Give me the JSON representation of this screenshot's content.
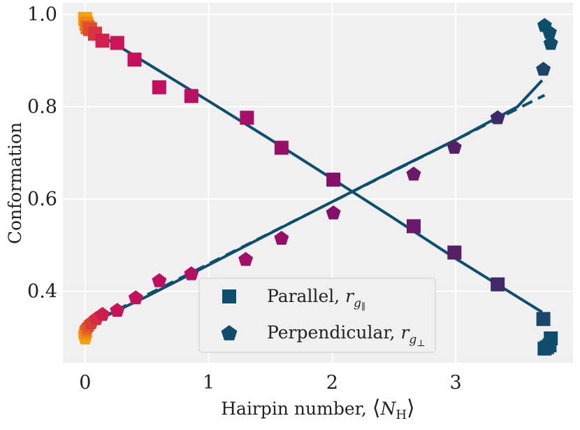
{
  "chart_data": {
    "type": "scatter",
    "title": "",
    "xlabel": "Hairpin number, ⟨Nʜ⟩",
    "xlabel_text": "Hairpin number, ",
    "xlabel_symbol": "N",
    "xlabel_subscript": "H",
    "ylabel": "Conformation",
    "xlim": [
      -0.18,
      3.95
    ],
    "ylim": [
      0.245,
      1.025
    ],
    "x_ticks": [
      0,
      1,
      2,
      3
    ],
    "x_tick_labels": [
      "0",
      "1",
      "2",
      "3"
    ],
    "y_ticks": [
      0.4,
      0.6,
      0.8,
      1.0
    ],
    "y_tick_labels": [
      "0.4",
      "0.6",
      "0.8",
      "1.0"
    ],
    "grid": true,
    "legend": {
      "position": "bottom-center",
      "entries": [
        {
          "marker": "square",
          "label": "Parallel, ",
          "symbol": "r",
          "subscript": "g",
          "subsub": "∥"
        },
        {
          "marker": "pentagon",
          "label": "Perpendicular, ",
          "symbol": "r",
          "subscript": "g",
          "subsub": "⊥"
        }
      ]
    },
    "fit_color": "#0d4f6e",
    "series": [
      {
        "name": "Parallel",
        "marker": "square",
        "points": [
          {
            "x": 0.0,
            "y": 0.99,
            "color": "#f5a30a"
          },
          {
            "x": 0.01,
            "y": 0.98,
            "color": "#ef8a14"
          },
          {
            "x": 0.02,
            "y": 0.972,
            "color": "#e86c1e"
          },
          {
            "x": 0.04,
            "y": 0.968,
            "color": "#e04d2c"
          },
          {
            "x": 0.08,
            "y": 0.958,
            "color": "#d93540"
          },
          {
            "x": 0.14,
            "y": 0.943,
            "color": "#d21f4c"
          },
          {
            "x": 0.26,
            "y": 0.938,
            "color": "#cc1458"
          },
          {
            "x": 0.4,
            "y": 0.902,
            "color": "#c6105c"
          },
          {
            "x": 0.6,
            "y": 0.842,
            "color": "#c20f5e"
          },
          {
            "x": 0.86,
            "y": 0.823,
            "color": "#b80f62"
          },
          {
            "x": 1.31,
            "y": 0.776,
            "color": "#a50f66"
          },
          {
            "x": 1.59,
            "y": 0.711,
            "color": "#980f68"
          },
          {
            "x": 2.01,
            "y": 0.642,
            "color": "#860f6a"
          },
          {
            "x": 2.66,
            "y": 0.541,
            "color": "#6a1a6a"
          },
          {
            "x": 2.99,
            "y": 0.484,
            "color": "#552066"
          },
          {
            "x": 3.34,
            "y": 0.415,
            "color": "#3e2a68"
          },
          {
            "x": 3.71,
            "y": 0.34,
            "color": "#1d4469"
          },
          {
            "x": 3.72,
            "y": 0.276,
            "color": "#0f4d6d"
          },
          {
            "x": 3.77,
            "y": 0.298,
            "color": "#0f4d6d"
          },
          {
            "x": 3.76,
            "y": 0.283,
            "color": "#0f4d6d"
          },
          {
            "x": 3.74,
            "y": 0.279,
            "color": "#0f4d6d"
          }
        ]
      },
      {
        "name": "Perpendicular",
        "marker": "pentagon",
        "points": [
          {
            "x": 0.0,
            "y": 0.3,
            "color": "#f5a30a"
          },
          {
            "x": 0.0,
            "y": 0.308,
            "color": "#f29512"
          },
          {
            "x": 0.005,
            "y": 0.313,
            "color": "#ee8418"
          },
          {
            "x": 0.01,
            "y": 0.318,
            "color": "#ea721e"
          },
          {
            "x": 0.015,
            "y": 0.322,
            "color": "#e66224"
          },
          {
            "x": 0.03,
            "y": 0.327,
            "color": "#e0502c"
          },
          {
            "x": 0.05,
            "y": 0.333,
            "color": "#da3d36"
          },
          {
            "x": 0.09,
            "y": 0.342,
            "color": "#d42c42"
          },
          {
            "x": 0.14,
            "y": 0.351,
            "color": "#ce1c4e"
          },
          {
            "x": 0.26,
            "y": 0.36,
            "color": "#c81456"
          },
          {
            "x": 0.41,
            "y": 0.387,
            "color": "#c3105c"
          },
          {
            "x": 0.6,
            "y": 0.424,
            "color": "#bd0f60"
          },
          {
            "x": 0.86,
            "y": 0.439,
            "color": "#b40f63"
          },
          {
            "x": 1.3,
            "y": 0.47,
            "color": "#a20f66"
          },
          {
            "x": 1.59,
            "y": 0.516,
            "color": "#950f68"
          },
          {
            "x": 2.01,
            "y": 0.571,
            "color": "#830f6a"
          },
          {
            "x": 2.66,
            "y": 0.655,
            "color": "#6c196a"
          },
          {
            "x": 2.99,
            "y": 0.713,
            "color": "#562066"
          },
          {
            "x": 3.34,
            "y": 0.777,
            "color": "#3e2a68"
          },
          {
            "x": 3.71,
            "y": 0.882,
            "color": "#1d4469"
          },
          {
            "x": 3.72,
            "y": 0.977,
            "color": "#0f4d6d"
          },
          {
            "x": 3.76,
            "y": 0.962,
            "color": "#0f4d6d"
          },
          {
            "x": 3.77,
            "y": 0.938,
            "color": "#0f4d6d"
          }
        ]
      }
    ],
    "fit_lines": [
      {
        "name": "parallel-fit",
        "style": "solid",
        "points": [
          {
            "x": 0.0,
            "y": 0.975
          },
          {
            "x": 0.5,
            "y": 0.894
          },
          {
            "x": 1.0,
            "y": 0.812
          },
          {
            "x": 1.5,
            "y": 0.729
          },
          {
            "x": 2.0,
            "y": 0.644
          },
          {
            "x": 2.5,
            "y": 0.558
          },
          {
            "x": 3.0,
            "y": 0.471
          },
          {
            "x": 3.5,
            "y": 0.388
          },
          {
            "x": 3.7,
            "y": 0.355
          }
        ]
      },
      {
        "name": "perpendicular-fit",
        "style": "solid",
        "points": [
          {
            "x": 0.0,
            "y": 0.325
          },
          {
            "x": 0.5,
            "y": 0.389
          },
          {
            "x": 1.0,
            "y": 0.457
          },
          {
            "x": 1.5,
            "y": 0.526
          },
          {
            "x": 2.0,
            "y": 0.594
          },
          {
            "x": 2.5,
            "y": 0.662
          },
          {
            "x": 3.0,
            "y": 0.728
          },
          {
            "x": 3.5,
            "y": 0.8
          },
          {
            "x": 3.7,
            "y": 0.857
          }
        ]
      },
      {
        "name": "perpendicular-dashed-fit",
        "style": "dashed",
        "points": [
          {
            "x": 0.0,
            "y": 0.325
          },
          {
            "x": 3.72,
            "y": 0.825
          }
        ]
      }
    ]
  }
}
